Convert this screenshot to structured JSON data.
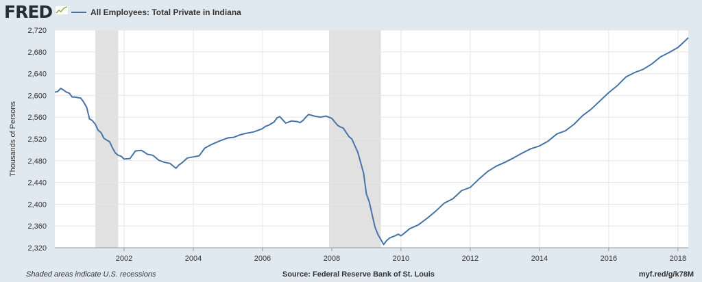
{
  "header": {
    "logo_text": "FRED",
    "logo_icon": "trend-line-icon",
    "legend_label": "All Employees: Total Private in Indiana"
  },
  "footer": {
    "note": "Shaded areas indicate U.S. recessions",
    "source": "Source: Federal Reserve Bank of St. Louis",
    "url": "myf.red/g/k78M"
  },
  "colors": {
    "series": "#4572a7",
    "recession": "#e1e1e1",
    "background": "#e1e9f0",
    "plot": "#ffffff"
  },
  "chart_data": {
    "type": "line",
    "title": "",
    "xlabel": "",
    "ylabel": "Thousands of Persons",
    "xlim": [
      2000.0,
      2018.3
    ],
    "ylim": [
      2320,
      2720
    ],
    "yticks": [
      2320,
      2360,
      2400,
      2440,
      2480,
      2520,
      2560,
      2600,
      2640,
      2680,
      2720
    ],
    "ytick_labels": [
      "2,320",
      "2,360",
      "2,400",
      "2,440",
      "2,480",
      "2,520",
      "2,560",
      "2,600",
      "2,640",
      "2,680",
      "2,720"
    ],
    "xticks": [
      2002,
      2004,
      2006,
      2008,
      2010,
      2012,
      2014,
      2016,
      2018
    ],
    "xtick_labels": [
      "2002",
      "2004",
      "2006",
      "2008",
      "2010",
      "2012",
      "2014",
      "2016",
      "2018"
    ],
    "grid": true,
    "recessions": [
      [
        2001.17,
        2001.83
      ],
      [
        2007.92,
        2009.42
      ]
    ],
    "series": [
      {
        "name": "All Employees: Total Private in Indiana",
        "x": [
          2000.0,
          2000.08,
          2000.17,
          2000.25,
          2000.33,
          2000.42,
          2000.5,
          2000.58,
          2000.67,
          2000.75,
          2000.83,
          2000.92,
          2001.0,
          2001.08,
          2001.17,
          2001.25,
          2001.33,
          2001.42,
          2001.5,
          2001.58,
          2001.67,
          2001.75,
          2001.83,
          2001.92,
          2002.0,
          2002.17,
          2002.33,
          2002.5,
          2002.58,
          2002.67,
          2002.83,
          2003.0,
          2003.08,
          2003.17,
          2003.25,
          2003.33,
          2003.5,
          2003.58,
          2003.67,
          2003.83,
          2004.0,
          2004.17,
          2004.33,
          2004.5,
          2004.75,
          2005.0,
          2005.17,
          2005.33,
          2005.5,
          2005.75,
          2006.0,
          2006.08,
          2006.17,
          2006.25,
          2006.33,
          2006.42,
          2006.5,
          2006.67,
          2006.83,
          2007.0,
          2007.08,
          2007.17,
          2007.25,
          2007.33,
          2007.5,
          2007.67,
          2007.83,
          2008.0,
          2008.17,
          2008.25,
          2008.33,
          2008.5,
          2008.58,
          2008.75,
          2008.83,
          2008.92,
          2009.0,
          2009.08,
          2009.17,
          2009.25,
          2009.33,
          2009.42,
          2009.5,
          2009.58,
          2009.67,
          2009.75,
          2009.83,
          2009.92,
          2010.0,
          2010.08,
          2010.25,
          2010.5,
          2010.75,
          2011.0,
          2011.25,
          2011.5,
          2011.75,
          2012.0,
          2012.25,
          2012.5,
          2012.75,
          2013.0,
          2013.25,
          2013.5,
          2013.75,
          2014.0,
          2014.25,
          2014.5,
          2014.75,
          2015.0,
          2015.25,
          2015.5,
          2015.75,
          2016.0,
          2016.25,
          2016.5,
          2016.75,
          2017.0,
          2017.25,
          2017.5,
          2017.75,
          2018.0,
          2018.17,
          2018.3
        ],
        "values": [
          2606,
          2607,
          2613,
          2610,
          2606,
          2604,
          2597,
          2597,
          2596,
          2595,
          2588,
          2578,
          2557,
          2554,
          2547,
          2536,
          2532,
          2521,
          2518,
          2515,
          2503,
          2494,
          2490,
          2488,
          2483,
          2484,
          2498,
          2499,
          2496,
          2492,
          2490,
          2481,
          2479,
          2477,
          2476,
          2475,
          2466,
          2472,
          2476,
          2485,
          2487,
          2489,
          2503,
          2509,
          2516,
          2522,
          2523,
          2527,
          2530,
          2533,
          2539,
          2543,
          2545,
          2548,
          2551,
          2559,
          2561,
          2549,
          2553,
          2552,
          2550,
          2554,
          2560,
          2565,
          2562,
          2560,
          2562,
          2558,
          2545,
          2542,
          2540,
          2524,
          2520,
          2496,
          2478,
          2457,
          2419,
          2405,
          2380,
          2358,
          2345,
          2335,
          2326,
          2333,
          2338,
          2340,
          2342,
          2345,
          2342,
          2346,
          2355,
          2362,
          2374,
          2387,
          2402,
          2410,
          2425,
          2431,
          2446,
          2460,
          2470,
          2477,
          2485,
          2494,
          2502,
          2507,
          2516,
          2529,
          2535,
          2547,
          2563,
          2575,
          2590,
          2605,
          2618,
          2634,
          2642,
          2648,
          2658,
          2671,
          2679,
          2688,
          2698,
          2706
        ]
      }
    ]
  }
}
